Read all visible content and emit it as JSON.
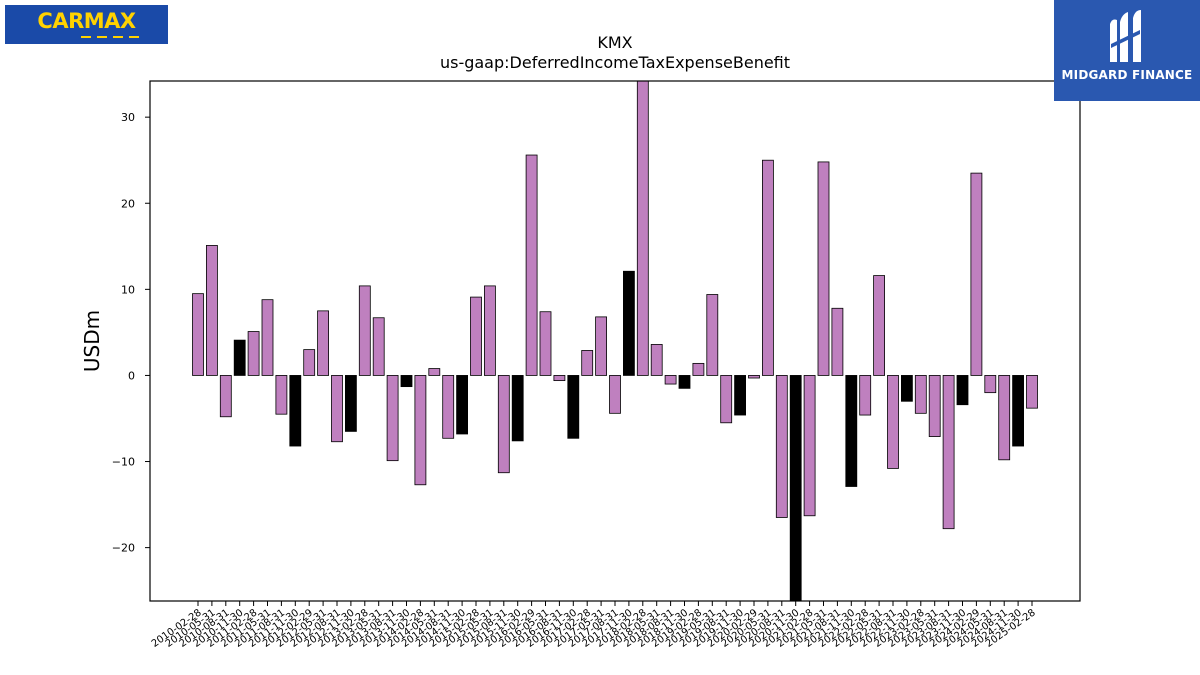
{
  "logos": {
    "left_brand": "CarMax",
    "left_wordmark": "CARMAX",
    "right_brand": "MIDGARD FINANCE"
  },
  "chart_data": {
    "type": "bar",
    "title": "KMX",
    "subtitle": "us-gaap:DeferredIncomeTaxExpenseBenefit",
    "ylabel": "USDm",
    "xlabel": "",
    "ylim": [
      -26.2,
      34.2
    ],
    "yticks": [
      -20,
      -10,
      0,
      10,
      20,
      30
    ],
    "grid": false,
    "colors": {
      "default": "#bf80bf",
      "highlight": "#000000",
      "edge": "#000000"
    },
    "categories": [
      "2010-02-28",
      "2010-05-31",
      "2010-08-31",
      "2010-11-30",
      "2011-02-28",
      "2011-05-31",
      "2011-08-31",
      "2011-11-30",
      "2012-02-29",
      "2012-05-31",
      "2012-08-31",
      "2012-11-30",
      "2013-02-28",
      "2013-05-31",
      "2013-08-31",
      "2013-11-30",
      "2014-02-28",
      "2014-05-31",
      "2014-08-31",
      "2014-11-30",
      "2015-02-28",
      "2015-05-31",
      "2015-08-31",
      "2015-11-30",
      "2016-02-29",
      "2016-05-31",
      "2016-08-31",
      "2016-11-30",
      "2017-02-28",
      "2017-05-31",
      "2017-08-31",
      "2017-11-30",
      "2018-02-28",
      "2018-05-31",
      "2018-08-31",
      "2018-11-30",
      "2019-02-28",
      "2019-05-31",
      "2019-08-31",
      "2019-11-30",
      "2020-02-29",
      "2020-05-31",
      "2020-08-31",
      "2020-11-30",
      "2021-02-28",
      "2021-05-31",
      "2021-08-31",
      "2021-11-30",
      "2022-02-28",
      "2022-05-31",
      "2022-08-31",
      "2022-11-30",
      "2023-02-28",
      "2023-05-31",
      "2023-08-31",
      "2023-11-30",
      "2024-02-29",
      "2024-05-31",
      "2024-08-31",
      "2024-11-30",
      "2025-02-28"
    ],
    "values": [
      9.5,
      15.1,
      -4.8,
      4.1,
      5.1,
      8.8,
      -4.5,
      -8.2,
      3.0,
      7.5,
      -7.7,
      -6.5,
      10.4,
      6.7,
      -9.9,
      -1.3,
      -12.7,
      0.8,
      -7.3,
      -6.8,
      9.1,
      10.4,
      -11.3,
      -7.6,
      25.6,
      7.4,
      -0.6,
      -7.3,
      2.9,
      6.8,
      -4.4,
      12.1,
      34.2,
      3.6,
      -1.0,
      -1.5,
      1.4,
      9.4,
      -5.5,
      -4.6,
      -0.3,
      25.0,
      -16.5,
      -26.2,
      -16.3,
      24.8,
      7.8,
      -12.9,
      -4.6,
      11.6,
      -10.8,
      -3.0,
      -4.4,
      -7.1,
      -17.8,
      -3.4,
      23.5,
      -2.0,
      -9.8,
      -8.2,
      -3.8
    ],
    "highlighted_indices": [
      3,
      7,
      11,
      15,
      19,
      23,
      27,
      31,
      35,
      39,
      43,
      47,
      51,
      55,
      59
    ]
  }
}
